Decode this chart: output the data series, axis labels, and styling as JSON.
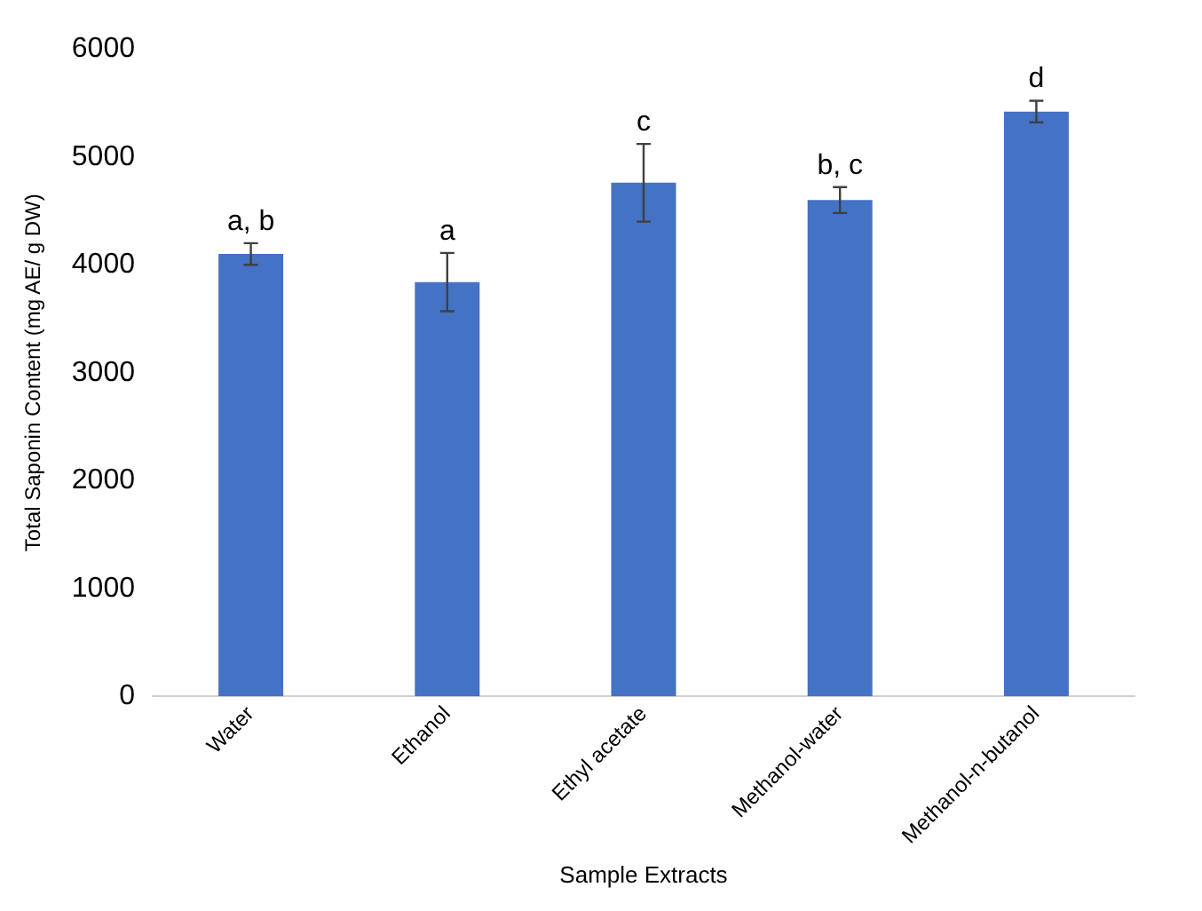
{
  "chart_data": {
    "type": "bar",
    "xlabel": "Sample Extracts",
    "ylabel": "Total Saponin Content (mg AE/ g DW)",
    "categories": [
      "Water",
      "Ethanol",
      "Ethyl acetate",
      "Methanol-water",
      "Methanol-n-butanol"
    ],
    "values": [
      4100,
      3840,
      4760,
      4600,
      5420
    ],
    "errors": [
      100,
      270,
      360,
      120,
      100
    ],
    "color": "#4472c4",
    "ylim": [
      0,
      6000
    ],
    "yticks": [
      0,
      1000,
      2000,
      3000,
      4000,
      5000,
      6000
    ],
    "grid": false,
    "legend": false,
    "annotations": [
      {
        "text": "a, b",
        "x": "Water",
        "y": 4200
      },
      {
        "text": "a",
        "x": "Ethanol",
        "y": 4110
      },
      {
        "text": "c",
        "x": "Ethyl acetate",
        "y": 5120
      },
      {
        "text": "b, c",
        "x": "Methanol-water",
        "y": 4720
      },
      {
        "text": "d",
        "x": "Methanol-n-butanol",
        "y": 5520
      }
    ]
  }
}
